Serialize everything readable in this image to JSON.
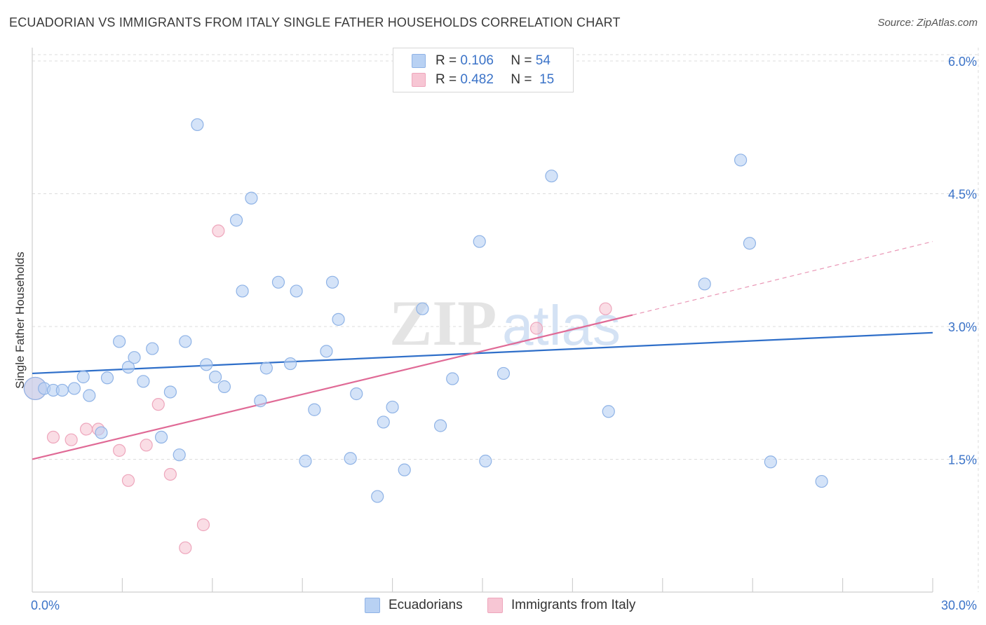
{
  "title": "ECUADORIAN VS IMMIGRANTS FROM ITALY SINGLE FATHER HOUSEHOLDS CORRELATION CHART",
  "source": "Source: ZipAtlas.com",
  "watermark": {
    "zip": "ZIP",
    "atlas": "atlas"
  },
  "colors": {
    "blue_fill": "#b8d1f3",
    "blue_stroke": "#8fb3e6",
    "blue_line": "#2f6fc9",
    "pink_fill": "#f7c6d4",
    "pink_stroke": "#eea6bc",
    "pink_line": "#e06a96",
    "grid": "#dcdcdc",
    "tick_label": "#3b73c8"
  },
  "legend": {
    "series": [
      {
        "r_label": "R =",
        "r_value": "0.106",
        "n_label": "N =",
        "n_value": "54"
      },
      {
        "r_label": "R =",
        "r_value": "0.482",
        "n_label": "N =",
        "n_value": "15"
      }
    ],
    "bottom": [
      "Ecuadorians",
      "Immigrants from Italy"
    ]
  },
  "chart_data": {
    "type": "scatter",
    "xlabel": "",
    "ylabel": "Single Father Households",
    "xlim": [
      0,
      30
    ],
    "ylim": [
      0,
      6.15
    ],
    "x_tick_labels": [
      {
        "value": 0,
        "label": "0.0%"
      },
      {
        "value": 30,
        "label": "30.0%"
      }
    ],
    "x_minor_ticks": [
      3,
      6,
      9,
      12,
      15,
      18,
      21,
      24,
      27,
      30
    ],
    "y_ticks": [
      {
        "value": 1.5,
        "label": "1.5%"
      },
      {
        "value": 3.0,
        "label": "3.0%"
      },
      {
        "value": 4.5,
        "label": "4.5%"
      },
      {
        "value": 6.0,
        "label": "6.0%"
      }
    ],
    "grid": true,
    "series": [
      {
        "name": "Ecuadorians",
        "R": 0.106,
        "N": 54,
        "trend": {
          "x": [
            0,
            30
          ],
          "y": [
            2.47,
            2.93
          ]
        },
        "points": [
          {
            "x": 0.1,
            "y": 2.3,
            "big": true
          },
          {
            "x": 0.4,
            "y": 2.3
          },
          {
            "x": 0.7,
            "y": 2.28
          },
          {
            "x": 1.0,
            "y": 2.28
          },
          {
            "x": 1.4,
            "y": 2.3
          },
          {
            "x": 1.7,
            "y": 2.43
          },
          {
            "x": 1.9,
            "y": 2.22
          },
          {
            "x": 2.3,
            "y": 1.8
          },
          {
            "x": 2.5,
            "y": 2.42
          },
          {
            "x": 2.9,
            "y": 2.83
          },
          {
            "x": 3.2,
            "y": 2.54
          },
          {
            "x": 3.4,
            "y": 2.65
          },
          {
            "x": 3.7,
            "y": 2.38
          },
          {
            "x": 4.0,
            "y": 2.75
          },
          {
            "x": 4.3,
            "y": 1.75
          },
          {
            "x": 4.6,
            "y": 2.26
          },
          {
            "x": 4.9,
            "y": 1.55
          },
          {
            "x": 5.1,
            "y": 2.83
          },
          {
            "x": 5.5,
            "y": 5.28
          },
          {
            "x": 5.8,
            "y": 2.57
          },
          {
            "x": 6.1,
            "y": 2.43
          },
          {
            "x": 6.4,
            "y": 2.32
          },
          {
            "x": 6.8,
            "y": 4.2
          },
          {
            "x": 7.0,
            "y": 3.4
          },
          {
            "x": 7.3,
            "y": 4.45
          },
          {
            "x": 7.6,
            "y": 2.16
          },
          {
            "x": 7.8,
            "y": 2.53
          },
          {
            "x": 8.2,
            "y": 3.5
          },
          {
            "x": 8.6,
            "y": 2.58
          },
          {
            "x": 8.8,
            "y": 3.4
          },
          {
            "x": 9.1,
            "y": 1.48
          },
          {
            "x": 9.4,
            "y": 2.06
          },
          {
            "x": 9.8,
            "y": 2.72
          },
          {
            "x": 10.0,
            "y": 3.5
          },
          {
            "x": 10.2,
            "y": 3.08
          },
          {
            "x": 10.6,
            "y": 1.51
          },
          {
            "x": 10.8,
            "y": 2.24
          },
          {
            "x": 11.5,
            "y": 1.08
          },
          {
            "x": 11.7,
            "y": 1.92
          },
          {
            "x": 12.0,
            "y": 2.09
          },
          {
            "x": 12.4,
            "y": 1.38
          },
          {
            "x": 13.0,
            "y": 3.2
          },
          {
            "x": 13.6,
            "y": 1.88
          },
          {
            "x": 14.0,
            "y": 2.41
          },
          {
            "x": 14.9,
            "y": 3.96
          },
          {
            "x": 15.1,
            "y": 1.48
          },
          {
            "x": 15.7,
            "y": 2.47
          },
          {
            "x": 17.3,
            "y": 4.7
          },
          {
            "x": 19.2,
            "y": 2.04
          },
          {
            "x": 22.4,
            "y": 3.48
          },
          {
            "x": 23.6,
            "y": 4.88
          },
          {
            "x": 23.9,
            "y": 3.94
          },
          {
            "x": 24.6,
            "y": 1.47
          },
          {
            "x": 26.3,
            "y": 1.25
          }
        ]
      },
      {
        "name": "Immigrants from Italy",
        "R": 0.482,
        "N": 15,
        "trend": {
          "x": [
            0,
            20.0
          ],
          "y": [
            1.5,
            3.13
          ]
        },
        "trend_extension": {
          "x": [
            20.0,
            30.0
          ],
          "y": [
            3.13,
            3.96
          ]
        },
        "points": [
          {
            "x": 0.1,
            "y": 2.3,
            "big": true
          },
          {
            "x": 0.7,
            "y": 1.75
          },
          {
            "x": 1.3,
            "y": 1.72
          },
          {
            "x": 1.8,
            "y": 1.84
          },
          {
            "x": 2.2,
            "y": 1.84
          },
          {
            "x": 2.9,
            "y": 1.6
          },
          {
            "x": 3.2,
            "y": 1.26
          },
          {
            "x": 3.8,
            "y": 1.66
          },
          {
            "x": 4.2,
            "y": 2.12
          },
          {
            "x": 4.6,
            "y": 1.33
          },
          {
            "x": 5.1,
            "y": 0.5
          },
          {
            "x": 5.7,
            "y": 0.76
          },
          {
            "x": 6.2,
            "y": 4.08
          },
          {
            "x": 16.8,
            "y": 2.98
          },
          {
            "x": 19.1,
            "y": 3.2
          }
        ]
      }
    ]
  }
}
